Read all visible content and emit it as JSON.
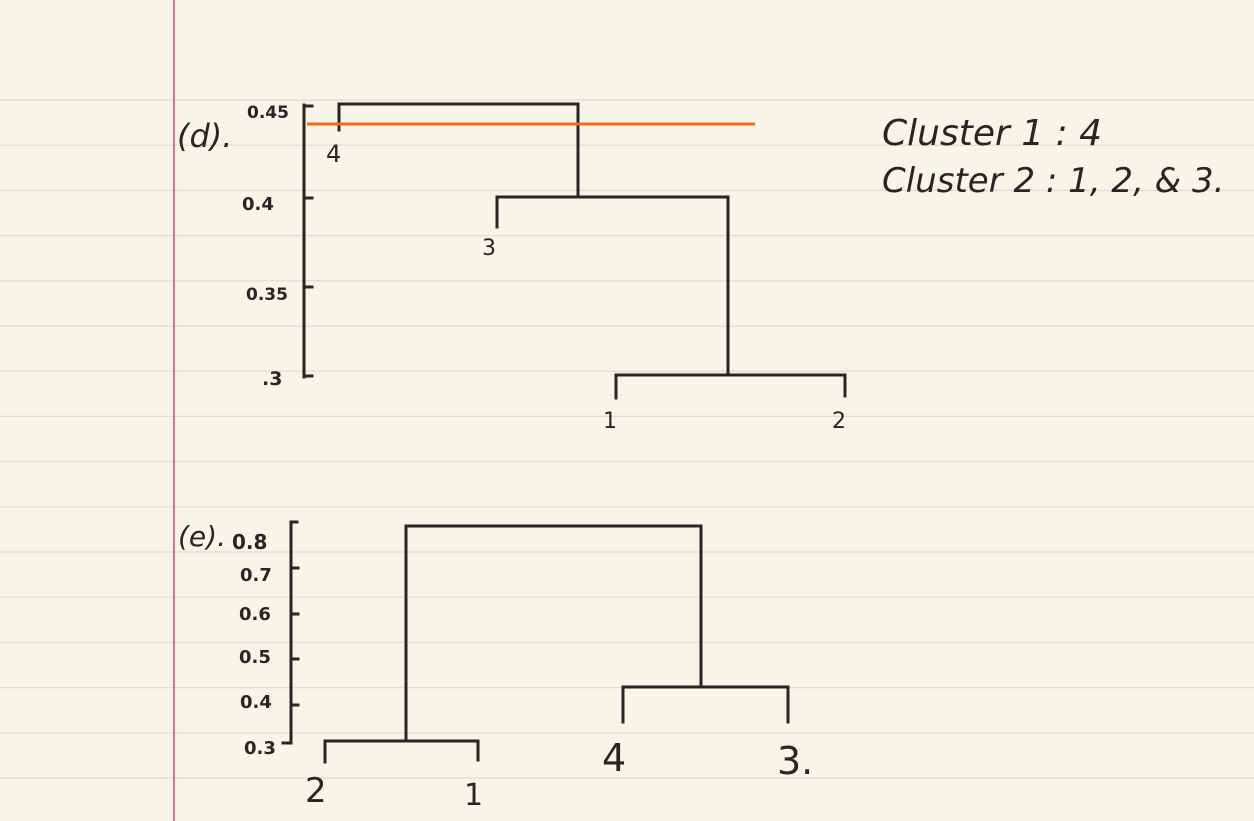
{
  "colors": {
    "paper": "#f8f5e8",
    "rule_line": "#dddbd3",
    "margin_line": "#d84a5b",
    "ink": "#262626",
    "cut_line": "#ec6a1d"
  },
  "part_d": {
    "label": "(d).",
    "y_ticks": [
      "0.45",
      "0.4",
      "0.35",
      ".3"
    ],
    "leaves": [
      "4",
      "3",
      "1",
      "2"
    ],
    "notes": [
      "Cluster 1 : 4",
      "Cluster 2 : 1, 2, & 3."
    ]
  },
  "part_e": {
    "label": "(e).",
    "y_ticks": [
      "0.8",
      "0.7",
      "0.6",
      "0.5",
      "0.4",
      "0.3"
    ],
    "leaves": [
      "2",
      "1",
      "4",
      "3."
    ]
  }
}
